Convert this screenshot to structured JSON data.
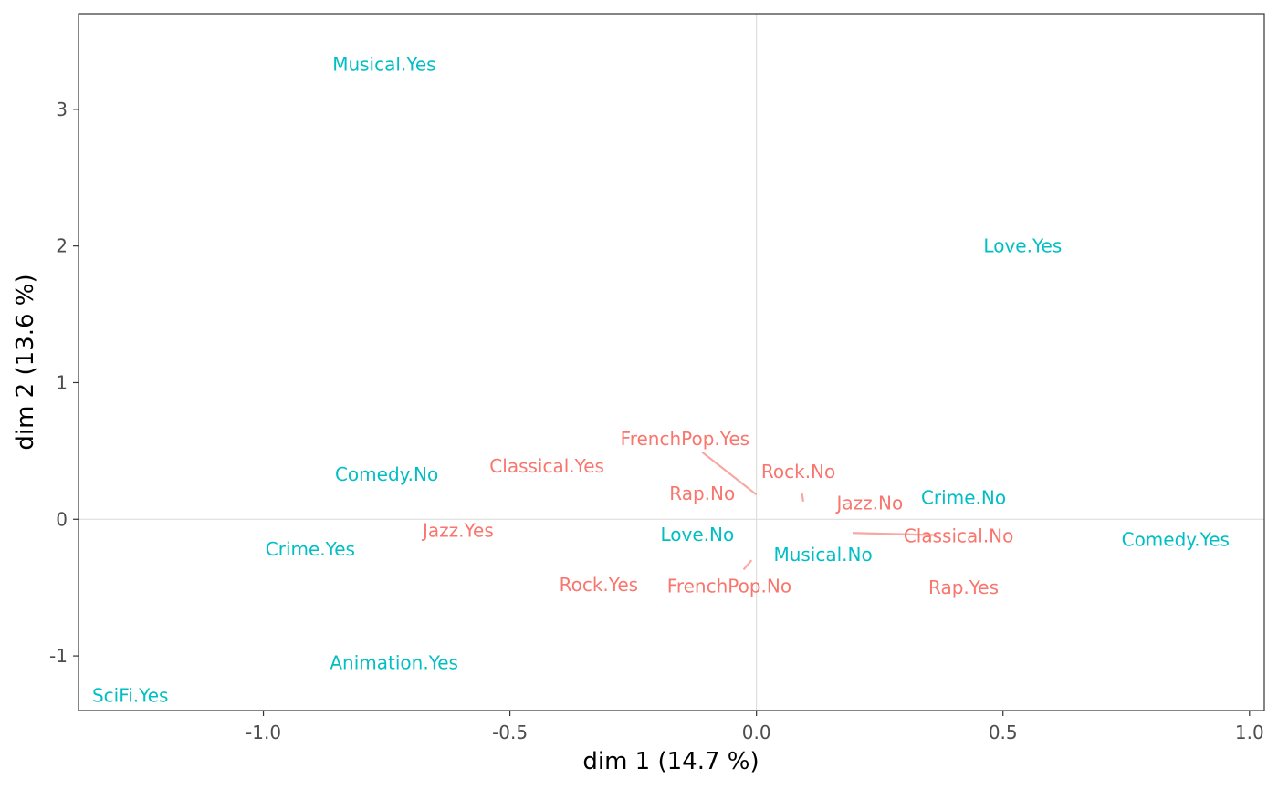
{
  "chart_data": {
    "type": "scatter",
    "xlabel": "dim 1 (14.7 %)",
    "ylabel": "dim 2 (13.6 %)",
    "xlim": [
      -1.375,
      1.03
    ],
    "ylim": [
      -1.4,
      3.7
    ],
    "x_ticks": [
      {
        "value": -1.0,
        "label": "-1.0"
      },
      {
        "value": -0.5,
        "label": "-0.5"
      },
      {
        "value": 0.0,
        "label": "0.0"
      },
      {
        "value": 0.5,
        "label": "0.5"
      },
      {
        "value": 1.0,
        "label": "1.0"
      }
    ],
    "y_ticks": [
      {
        "value": -1,
        "label": "-1"
      },
      {
        "value": 0,
        "label": "0"
      },
      {
        "value": 1,
        "label": "1"
      },
      {
        "value": 2,
        "label": "2"
      },
      {
        "value": 3,
        "label": "3"
      }
    ],
    "colors": {
      "group_a": "#F8766D",
      "group_b": "#00BFC4",
      "segment": "#F8A8A3",
      "ref_line": "#d9d9d9"
    },
    "series": [
      {
        "key": "group_a",
        "points": [
          {
            "label": "FrenchPop.Yes",
            "label_x": -0.145,
            "label_y": 0.59,
            "x": 0.0,
            "y": 0.18,
            "leader": true
          },
          {
            "label": "Classical.Yes",
            "label_x": -0.425,
            "label_y": 0.39
          },
          {
            "label": "Rock.No",
            "label_x": 0.085,
            "label_y": 0.35,
            "x": 0.095,
            "y": 0.13,
            "leader": true
          },
          {
            "label": "Rap.No",
            "label_x": -0.11,
            "label_y": 0.19
          },
          {
            "label": "Jazz.No",
            "label_x": 0.23,
            "label_y": 0.12
          },
          {
            "label": "Jazz.Yes",
            "label_x": -0.605,
            "label_y": -0.08
          },
          {
            "label": "Classical.No",
            "label_x": 0.41,
            "label_y": -0.12,
            "x": 0.195,
            "y": -0.1,
            "leader": true
          },
          {
            "label": "Rock.Yes",
            "label_x": -0.32,
            "label_y": -0.48
          },
          {
            "label": "FrenchPop.No",
            "label_x": -0.055,
            "label_y": -0.49,
            "x": -0.01,
            "y": -0.3,
            "leader": true
          },
          {
            "label": "Rap.Yes",
            "label_x": 0.42,
            "label_y": -0.5
          }
        ]
      },
      {
        "key": "group_b",
        "points": [
          {
            "label": "Musical.Yes",
            "label_x": -0.755,
            "label_y": 3.33
          },
          {
            "label": "Love.Yes",
            "label_x": 0.54,
            "label_y": 2.0
          },
          {
            "label": "Comedy.No",
            "label_x": -0.75,
            "label_y": 0.33
          },
          {
            "label": "Crime.No",
            "label_x": 0.42,
            "label_y": 0.16
          },
          {
            "label": "Crime.Yes",
            "label_x": -0.905,
            "label_y": -0.22
          },
          {
            "label": "Love.No",
            "label_x": -0.12,
            "label_y": -0.11
          },
          {
            "label": "Musical.No",
            "label_x": 0.135,
            "label_y": -0.26
          },
          {
            "label": "Comedy.Yes",
            "label_x": 0.85,
            "label_y": -0.15
          },
          {
            "label": "Animation.Yes",
            "label_x": -0.735,
            "label_y": -1.05
          },
          {
            "label": "SciFi.Yes",
            "label_x": -1.27,
            "label_y": -1.29
          }
        ]
      }
    ]
  }
}
